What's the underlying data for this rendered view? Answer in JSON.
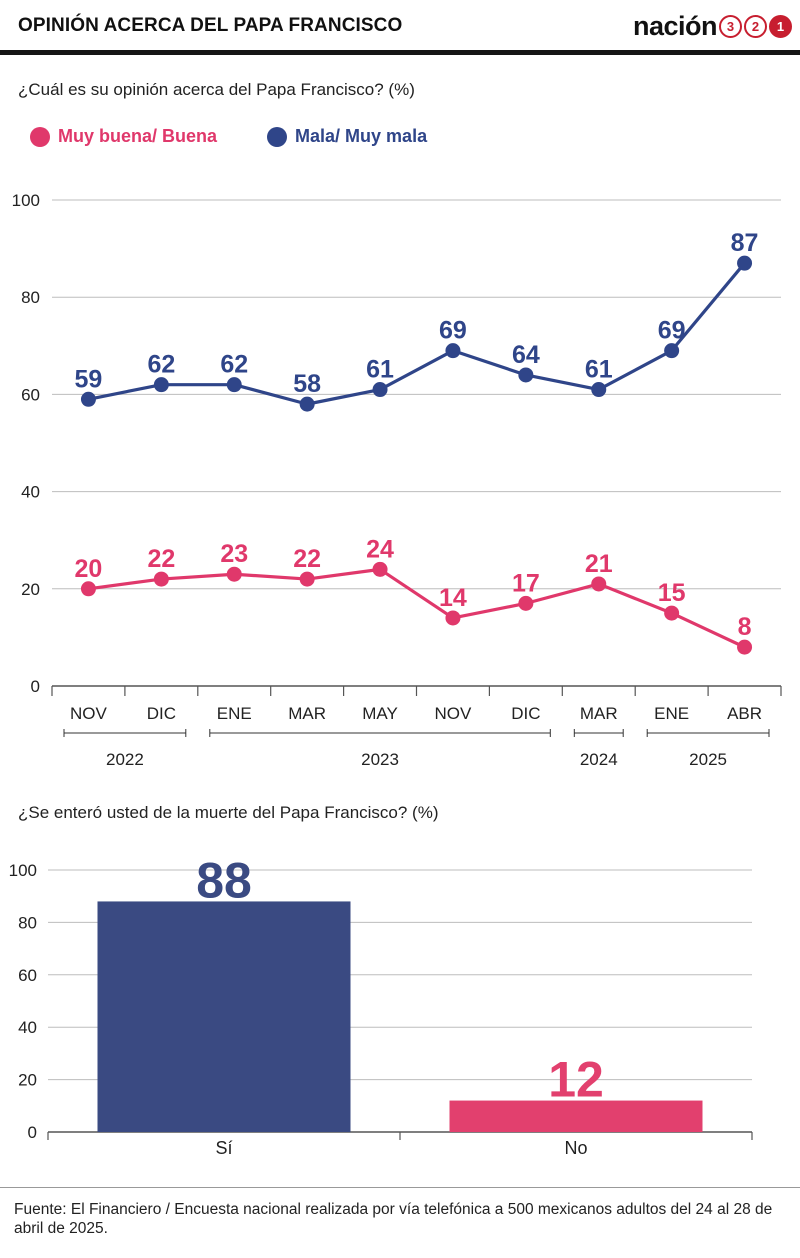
{
  "header": {
    "title": "OPINIÓN ACERCA DEL PAPA FRANCISCO",
    "logo_word": "nación",
    "logo_digits": [
      "3",
      "2",
      "1"
    ]
  },
  "colors": {
    "pink": "#e0386b",
    "navy": "#2f4589",
    "bar_navy": "#3a4a82",
    "bar_pink": "#e2406e",
    "accent_red": "#c71e2f"
  },
  "chart_data": [
    {
      "type": "line",
      "title": "¿Cuál es su opinión acerca del Papa Francisco? (%)",
      "categories": [
        "NOV",
        "DIC",
        "ENE",
        "MAR",
        "MAY",
        "NOV",
        "DIC",
        "MAR",
        "ENE",
        "ABR"
      ],
      "year_groups": [
        {
          "label": "2022",
          "from": 0,
          "to": 1
        },
        {
          "label": "2023",
          "from": 2,
          "to": 6
        },
        {
          "label": "2024",
          "from": 7,
          "to": 7
        },
        {
          "label": "2025",
          "from": 8,
          "to": 9
        }
      ],
      "series": [
        {
          "name": "Muy buena/ Buena",
          "color": "#e0386b",
          "values": [
            20,
            22,
            23,
            22,
            24,
            14,
            17,
            21,
            15,
            8
          ]
        },
        {
          "name": "Mala/ Muy mala",
          "color": "#2f4589",
          "values": [
            59,
            62,
            62,
            58,
            61,
            69,
            64,
            61,
            69,
            87
          ]
        }
      ],
      "ylim": [
        0,
        100
      ],
      "yticks": [
        0,
        20,
        40,
        60,
        80,
        100
      ],
      "grid": true,
      "legend": "top-left"
    },
    {
      "type": "bar",
      "title": "¿Se enteró usted de la muerte del Papa Francisco? (%)",
      "categories": [
        "Sí",
        "No"
      ],
      "values": [
        88,
        12
      ],
      "colors": [
        "#3a4a82",
        "#e2406e"
      ],
      "ylim": [
        0,
        100
      ],
      "yticks": [
        0,
        20,
        40,
        60,
        80,
        100
      ],
      "grid": true
    }
  ],
  "source": "Fuente: El Financiero / Encuesta nacional realizada por vía telefónica a 500 mexicanos adultos del 24 al 28 de abril de 2025."
}
